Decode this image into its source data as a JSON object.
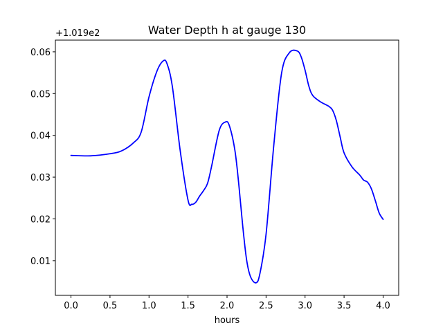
{
  "chart_data": {
    "type": "line",
    "title": "Water Depth h at gauge 130",
    "xlabel": "hours",
    "ylabel": "",
    "offset_label": "+1.019e2",
    "xlim": [
      -0.2,
      4.2
    ],
    "ylim": [
      0.0017,
      0.0628
    ],
    "xticks": [
      0.0,
      0.5,
      1.0,
      1.5,
      2.0,
      2.5,
      3.0,
      3.5,
      4.0
    ],
    "xtick_labels": [
      "0.0",
      "0.5",
      "1.0",
      "1.5",
      "2.0",
      "2.5",
      "3.0",
      "3.5",
      "4.0"
    ],
    "yticks": [
      0.01,
      0.02,
      0.03,
      0.04,
      0.05,
      0.06
    ],
    "ytick_labels": [
      "0.01",
      "0.02",
      "0.03",
      "0.04",
      "0.05",
      "0.06"
    ],
    "grid": false,
    "series": [
      {
        "color": "#0000ff",
        "x": [
          0.0,
          0.25,
          0.5,
          0.65,
          0.8,
          0.9,
          1.0,
          1.1,
          1.18,
          1.23,
          1.3,
          1.4,
          1.5,
          1.55,
          1.6,
          1.65,
          1.7,
          1.75,
          1.8,
          1.9,
          1.98,
          2.03,
          2.1,
          2.15,
          2.2,
          2.25,
          2.3,
          2.37,
          2.42,
          2.5,
          2.6,
          2.7,
          2.8,
          2.9,
          2.95,
          3.0,
          3.05,
          3.1,
          3.2,
          3.3,
          3.35,
          3.4,
          3.45,
          3.5,
          3.6,
          3.7,
          3.75,
          3.8,
          3.85,
          3.9,
          3.95,
          4.0
        ],
        "y": [
          0.0352,
          0.0351,
          0.0356,
          0.0363,
          0.0382,
          0.0408,
          0.0492,
          0.0553,
          0.0578,
          0.0572,
          0.0516,
          0.0363,
          0.0245,
          0.0235,
          0.024,
          0.0255,
          0.0268,
          0.0285,
          0.0324,
          0.0412,
          0.0432,
          0.0423,
          0.0365,
          0.0284,
          0.0185,
          0.0103,
          0.0062,
          0.0047,
          0.0068,
          0.0163,
          0.0378,
          0.055,
          0.0598,
          0.0602,
          0.0588,
          0.0556,
          0.0517,
          0.0495,
          0.048,
          0.047,
          0.0461,
          0.0436,
          0.0396,
          0.0358,
          0.0325,
          0.0305,
          0.0293,
          0.0288,
          0.0272,
          0.0244,
          0.0214,
          0.0199
        ]
      }
    ]
  }
}
